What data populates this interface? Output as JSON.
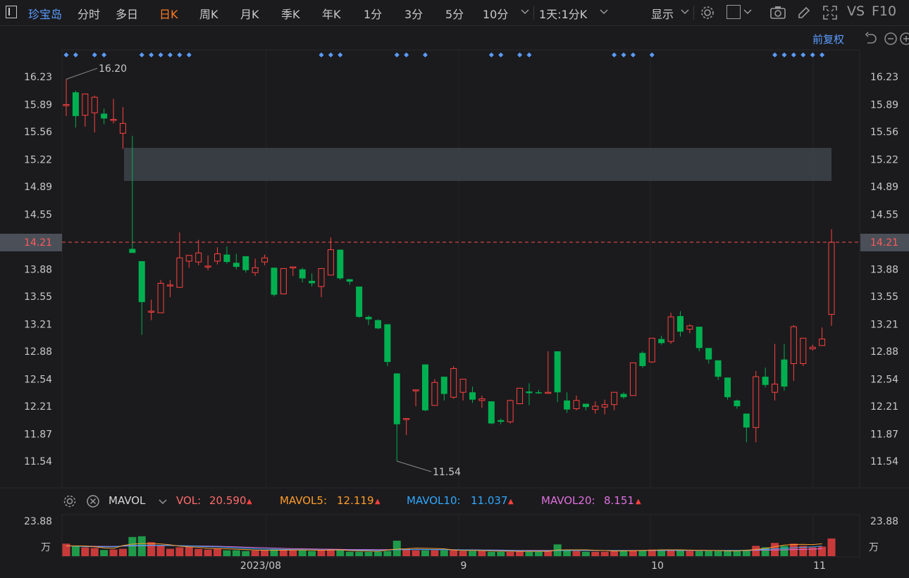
{
  "toolbar": {
    "stock_name": "珍宝岛",
    "periods": [
      "分时",
      "多日",
      "日K",
      "周K",
      "月K",
      "季K",
      "年K",
      "1分",
      "3分",
      "5分",
      "10分"
    ],
    "active_period": "日K",
    "combo": "1天:1分K",
    "display": "显示",
    "vs": "VS",
    "f10": "F10"
  },
  "subbar": {
    "adjust": "前复权"
  },
  "price_axis": {
    "ticks": [
      "16.23",
      "15.89",
      "15.56",
      "15.22",
      "14.89",
      "14.55",
      "14.21",
      "13.88",
      "13.55",
      "13.21",
      "12.88",
      "12.54",
      "12.21",
      "11.87",
      "11.54"
    ],
    "current": "14.21"
  },
  "annotations": {
    "high": "16.20",
    "low": "11.54"
  },
  "volume_legend": {
    "name": "MAVOL",
    "vol_label": "VOL:",
    "vol_value": "20.590",
    "ma5_label": "MAVOL5:",
    "ma5_value": "12.119",
    "ma10_label": "MAVOL10:",
    "ma10_value": "11.037",
    "ma20_label": "MAVOL20:",
    "ma20_value": "8.151"
  },
  "volume_axis": {
    "max": "23.88",
    "unit": "万"
  },
  "time_axis": [
    "2023/08",
    "9",
    "10",
    "11"
  ],
  "colors": {
    "up": "#ff4040",
    "down": "#00b050",
    "accent": "#ff7c24",
    "blue": "#5b9cff",
    "ma5": "#ff9c2b",
    "ma10": "#2fa8ff",
    "ma20": "#e070e0"
  },
  "chart_data": {
    "type": "candlestick",
    "ylim": [
      11.3,
      16.5
    ],
    "volume_max": 23.88,
    "candles": [
      [
        15.89,
        15.89,
        16.2,
        15.75,
        8.5
      ],
      [
        16.04,
        15.75,
        16.06,
        15.61,
        7.0
      ],
      [
        15.76,
        16.02,
        16.02,
        15.62,
        6.0
      ],
      [
        15.79,
        15.98,
        16.0,
        15.55,
        5.5
      ],
      [
        15.78,
        15.72,
        15.84,
        15.65,
        4.2
      ],
      [
        15.71,
        15.71,
        15.96,
        15.66,
        4.5
      ],
      [
        15.54,
        15.66,
        15.86,
        15.35,
        5.0
      ],
      [
        14.13,
        14.08,
        15.51,
        14.08,
        13.0
      ],
      [
        13.98,
        13.48,
        13.98,
        13.08,
        13.5
      ],
      [
        13.37,
        13.37,
        13.51,
        13.26,
        9.5
      ],
      [
        13.35,
        13.71,
        13.75,
        13.35,
        7.0
      ],
      [
        13.69,
        13.69,
        13.75,
        13.54,
        5.0
      ],
      [
        13.66,
        14.02,
        14.33,
        13.66,
        6.0
      ],
      [
        13.98,
        14.05,
        14.05,
        13.9,
        6.5
      ],
      [
        13.97,
        14.08,
        14.24,
        13.93,
        5.0
      ],
      [
        13.92,
        13.92,
        14.05,
        13.87,
        4.5
      ],
      [
        13.98,
        14.07,
        14.15,
        13.94,
        5.0
      ],
      [
        14.06,
        13.97,
        14.16,
        13.95,
        4.0
      ],
      [
        13.96,
        13.91,
        14.07,
        13.88,
        4.0
      ],
      [
        14.04,
        13.87,
        14.04,
        13.84,
        3.5
      ],
      [
        13.84,
        13.9,
        14.01,
        13.8,
        3.8
      ],
      [
        13.97,
        14.02,
        14.06,
        13.93,
        4.0
      ],
      [
        13.9,
        13.57,
        13.9,
        13.55,
        4.5
      ],
      [
        13.58,
        13.89,
        13.89,
        13.58,
        4.5
      ],
      [
        13.9,
        13.91,
        13.91,
        13.8,
        4.0
      ],
      [
        13.88,
        13.77,
        13.9,
        13.72,
        4.0
      ],
      [
        13.74,
        13.71,
        13.83,
        13.67,
        3.5
      ],
      [
        13.67,
        13.89,
        13.89,
        13.54,
        4.0
      ],
      [
        13.81,
        14.12,
        14.27,
        13.81,
        4.5
      ],
      [
        14.12,
        13.77,
        14.12,
        13.75,
        4.0
      ],
      [
        13.76,
        13.73,
        13.76,
        13.69,
        3.0
      ],
      [
        13.67,
        13.3,
        13.67,
        13.29,
        3.0
      ],
      [
        13.3,
        13.27,
        13.32,
        13.2,
        3.0
      ],
      [
        13.26,
        13.16,
        13.27,
        13.15,
        3.0
      ],
      [
        13.21,
        12.75,
        13.21,
        12.7,
        3.5
      ],
      [
        12.61,
        11.99,
        12.61,
        11.54,
        10.5
      ],
      [
        12.06,
        12.06,
        12.05,
        11.86,
        5.0
      ],
      [
        12.41,
        12.41,
        12.41,
        12.21,
        4.0
      ],
      [
        12.72,
        12.16,
        12.72,
        12.15,
        4.0
      ],
      [
        12.22,
        12.5,
        12.54,
        12.22,
        4.0
      ],
      [
        12.57,
        12.36,
        12.57,
        12.28,
        4.0
      ],
      [
        12.32,
        12.67,
        12.7,
        12.3,
        4.0
      ],
      [
        12.38,
        12.54,
        12.54,
        12.28,
        3.5
      ],
      [
        12.38,
        12.29,
        12.45,
        12.25,
        3.5
      ],
      [
        12.28,
        12.3,
        12.34,
        12.19,
        3.5
      ],
      [
        12.27,
        12.0,
        12.27,
        11.99,
        3.0
      ],
      [
        12.04,
        12.02,
        12.06,
        11.99,
        3.0
      ],
      [
        12.02,
        12.28,
        12.29,
        12.0,
        3.0
      ],
      [
        12.24,
        12.43,
        12.43,
        12.24,
        3.5
      ],
      [
        12.39,
        12.37,
        12.49,
        12.22,
        3.0
      ],
      [
        12.38,
        12.37,
        12.41,
        12.36,
        3.0
      ],
      [
        12.38,
        12.38,
        12.88,
        12.38,
        3.5
      ],
      [
        12.88,
        12.38,
        12.88,
        12.26,
        8.0
      ],
      [
        12.28,
        12.17,
        12.38,
        12.13,
        4.0
      ],
      [
        12.18,
        12.28,
        12.34,
        12.16,
        3.5
      ],
      [
        12.24,
        12.2,
        12.24,
        12.16,
        3.0
      ],
      [
        12.17,
        12.21,
        12.27,
        12.12,
        3.0
      ],
      [
        12.2,
        12.23,
        12.29,
        12.11,
        3.0
      ],
      [
        12.23,
        12.38,
        12.38,
        12.16,
        3.5
      ],
      [
        12.36,
        12.32,
        12.38,
        12.3,
        3.5
      ],
      [
        12.34,
        12.74,
        12.74,
        12.34,
        4.0
      ],
      [
        12.86,
        12.7,
        12.88,
        12.68,
        4.0
      ],
      [
        12.75,
        13.04,
        13.04,
        12.74,
        4.5
      ],
      [
        13.03,
        12.98,
        13.07,
        12.96,
        4.5
      ],
      [
        13.0,
        13.3,
        13.35,
        12.97,
        4.5
      ],
      [
        13.31,
        13.12,
        13.37,
        13.06,
        4.0
      ],
      [
        13.15,
        13.19,
        13.21,
        13.1,
        3.5
      ],
      [
        13.18,
        12.92,
        13.18,
        12.88,
        3.5
      ],
      [
        12.92,
        12.78,
        12.92,
        12.73,
        3.5
      ],
      [
        12.77,
        12.57,
        12.77,
        12.53,
        3.5
      ],
      [
        12.56,
        12.32,
        12.56,
        12.29,
        3.5
      ],
      [
        12.28,
        12.21,
        12.29,
        12.18,
        3.5
      ],
      [
        12.12,
        11.95,
        12.12,
        11.77,
        3.8
      ],
      [
        11.95,
        12.57,
        12.64,
        11.77,
        7.0
      ],
      [
        12.57,
        12.47,
        12.68,
        12.44,
        6.0
      ],
      [
        12.38,
        12.48,
        12.97,
        12.28,
        9.0
      ],
      [
        12.78,
        12.45,
        12.97,
        12.4,
        7.0
      ],
      [
        12.73,
        13.18,
        13.2,
        12.52,
        8.5
      ],
      [
        12.73,
        13.04,
        13.04,
        12.7,
        7.0
      ],
      [
        12.91,
        12.93,
        12.96,
        12.89,
        6.0
      ],
      [
        12.95,
        13.03,
        13.17,
        12.95,
        6.5
      ],
      [
        13.33,
        14.21,
        14.37,
        13.19,
        12.0
      ]
    ],
    "ma5_line": [
      7.0,
      7.0,
      6.9,
      6.4,
      5.6,
      5.3,
      7.2,
      8.2,
      8.6,
      8.5,
      8.3,
      7.7,
      6.8,
      6.3,
      6.0,
      5.4,
      5.2,
      5.0,
      4.7,
      4.5,
      4.2,
      4.0,
      4.0,
      4.1,
      4.2,
      4.2,
      4.1,
      4.0,
      4.2,
      4.3,
      3.8,
      3.6,
      3.5,
      3.3,
      4.2,
      4.8,
      5.0,
      5.5,
      5.4,
      5.2,
      5.0,
      4.2,
      3.9,
      3.9,
      3.8,
      3.5,
      3.4,
      3.4,
      3.3,
      3.3,
      3.3,
      3.3,
      4.2,
      4.3,
      4.3,
      4.3,
      4.0,
      3.8,
      3.5,
      3.6,
      3.7,
      3.9,
      4.0,
      4.3,
      4.3,
      4.3,
      4.1,
      4.0,
      3.9,
      3.8,
      3.6,
      3.6,
      4.0,
      4.5,
      5.3,
      6.4,
      7.5,
      7.9,
      8.0,
      7.8,
      8.4
    ],
    "ma10_line": [
      7.0,
      6.8,
      6.5,
      6.4,
      6.3,
      6.3,
      7.0,
      7.3,
      7.4,
      7.4,
      7.4,
      7.4,
      7.1,
      6.9,
      6.7,
      6.4,
      6.3,
      6.0,
      5.7,
      5.4,
      5.0,
      4.8,
      4.7,
      4.6,
      4.5,
      4.4,
      4.3,
      4.2,
      4.2,
      4.2,
      4.1,
      4.0,
      4.0,
      3.9,
      4.1,
      4.4,
      4.5,
      4.6,
      4.6,
      4.5,
      4.4,
      4.3,
      4.3,
      4.2,
      4.1,
      4.0,
      3.9,
      3.8,
      3.7,
      3.6,
      3.6,
      3.6,
      3.8,
      3.8,
      3.9,
      3.9,
      3.9,
      3.8,
      3.8,
      3.8,
      3.8,
      3.9,
      3.9,
      4.0,
      4.0,
      4.0,
      4.0,
      4.0,
      3.9,
      3.9,
      3.9,
      3.9,
      4.1,
      4.3,
      4.6,
      5.0,
      5.4,
      5.7,
      6.0,
      6.3,
      6.8
    ],
    "ma20_line": [
      7.0,
      6.9,
      6.8,
      6.7,
      6.6,
      6.6,
      6.8,
      7.0,
      7.1,
      7.2,
      7.2,
      7.2,
      7.1,
      7.0,
      6.9,
      6.8,
      6.7,
      6.5,
      6.3,
      6.1,
      5.9,
      5.7,
      5.5,
      5.3,
      5.1,
      5.0,
      4.9,
      4.8,
      4.7,
      4.6,
      4.5,
      4.5,
      4.5,
      4.4,
      4.4,
      4.5,
      4.5,
      4.5,
      4.5,
      4.4,
      4.4,
      4.4,
      4.3,
      4.3,
      4.2,
      4.2,
      4.1,
      4.0,
      3.9,
      3.9,
      3.9,
      3.9,
      3.9,
      3.9,
      3.9,
      3.9,
      3.9,
      3.9,
      3.9,
      3.9,
      3.9,
      3.9,
      3.9,
      3.9,
      3.9,
      3.9,
      3.9,
      3.9,
      3.9,
      3.9,
      3.9,
      3.9,
      3.9,
      4.0,
      4.1,
      4.2,
      4.3,
      4.5,
      4.6,
      4.8,
      5.1
    ],
    "signal_candle_indices": [
      0,
      1,
      3,
      4,
      8,
      9,
      10,
      11,
      12,
      13,
      27,
      28,
      29,
      35,
      36,
      38,
      45,
      46,
      48,
      49,
      58,
      59,
      60,
      62,
      75,
      76,
      77,
      78,
      79,
      80
    ]
  }
}
